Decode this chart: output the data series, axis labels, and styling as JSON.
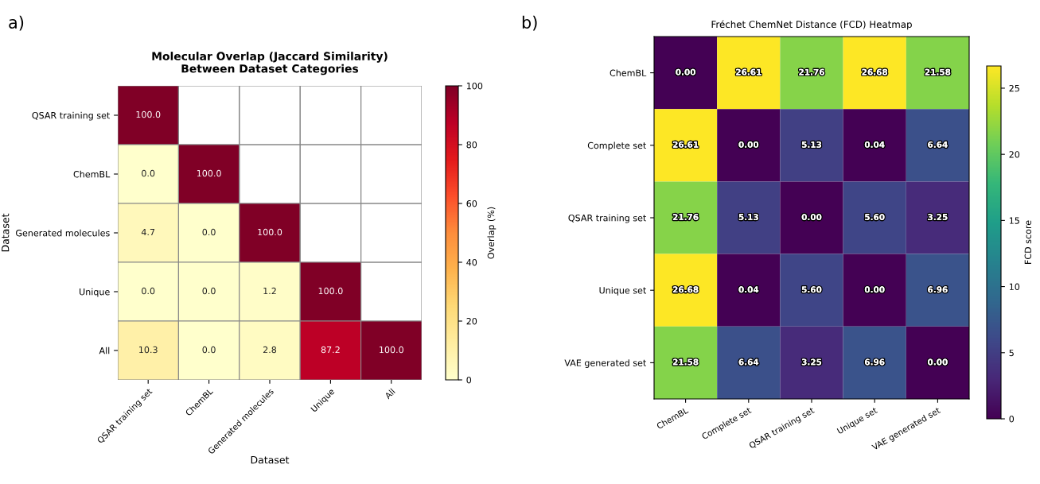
{
  "chart_data": [
    {
      "type": "heatmap",
      "title": "Molecular Overlap (Jaccard Similarity)\nBetween Dataset Categories",
      "xlabel": "Dataset",
      "ylabel": "Dataset",
      "clabel": "Overlap (%)",
      "annotations": [
        "a)"
      ],
      "categories": [
        "QSAR training set",
        "ChemBL",
        "Generated molecules",
        "Unique",
        "All"
      ],
      "y_categories": [
        "QSAR training set",
        "ChemBL",
        "Generated molecules",
        "Unique",
        "All"
      ],
      "cells": [
        [
          100.0,
          null,
          null,
          null,
          null
        ],
        [
          0.0,
          100.0,
          null,
          null,
          null
        ],
        [
          4.7,
          0.0,
          100.0,
          null,
          null
        ],
        [
          0.0,
          0.0,
          1.2,
          100.0,
          null
        ],
        [
          10.3,
          0.0,
          2.8,
          87.2,
          100.0
        ]
      ],
      "cell_labels": [
        [
          "100.0",
          null,
          null,
          null,
          null
        ],
        [
          "0.0",
          "100.0",
          null,
          null,
          null
        ],
        [
          "4.7",
          "0.0",
          "100.0",
          null,
          null
        ],
        [
          "0.0",
          "0.0",
          "1.2",
          "100.0",
          null
        ],
        [
          "10.3",
          "0.0",
          "2.8",
          "87.2",
          "100.0"
        ]
      ],
      "clim": [
        0,
        100
      ],
      "cticks": [
        0,
        20,
        40,
        60,
        80,
        100
      ],
      "colors": [
        "#ffffcc",
        "#ffeda0",
        "#fed976",
        "#feb24c",
        "#fd8d3c",
        "#fc4e2a",
        "#e31a1c",
        "#bd0026",
        "#800026"
      ]
    },
    {
      "type": "heatmap",
      "title": "Fréchet ChemNet Distance (FCD) Heatmap",
      "clabel": "FCD score",
      "annotations": [
        "b)"
      ],
      "categories": [
        "ChemBL",
        "Complete set",
        "QSAR training set",
        "Unique set",
        "VAE generated set"
      ],
      "y_categories": [
        "ChemBL",
        "Complete set",
        "QSAR training set",
        "Unique set",
        "VAE generated set"
      ],
      "cells": [
        [
          0.0,
          26.61,
          21.76,
          26.68,
          21.58
        ],
        [
          26.61,
          0.0,
          5.13,
          0.04,
          6.64
        ],
        [
          21.76,
          5.13,
          0.0,
          5.6,
          3.25
        ],
        [
          26.68,
          0.04,
          5.6,
          0.0,
          6.96
        ],
        [
          21.58,
          6.64,
          3.25,
          6.96,
          0.0
        ]
      ],
      "cell_labels": [
        [
          "0.00",
          "26.61",
          "21.76",
          "26.68",
          "21.58"
        ],
        [
          "26.61",
          "0.00",
          "5.13",
          "0.04",
          "6.64"
        ],
        [
          "21.76",
          "5.13",
          "0.00",
          "5.60",
          "3.25"
        ],
        [
          "26.68",
          "0.04",
          "5.60",
          "0.00",
          "6.96"
        ],
        [
          "21.58",
          "6.64",
          "3.25",
          "6.96",
          "0.00"
        ]
      ],
      "clim": [
        0,
        26.68
      ],
      "cticks": [
        0,
        5,
        10,
        15,
        20,
        25
      ],
      "colors": [
        "#440154",
        "#482878",
        "#3e4989",
        "#31688e",
        "#26828e",
        "#1f9e89",
        "#35b779",
        "#6ece58",
        "#b5de2b",
        "#fde725"
      ]
    }
  ]
}
